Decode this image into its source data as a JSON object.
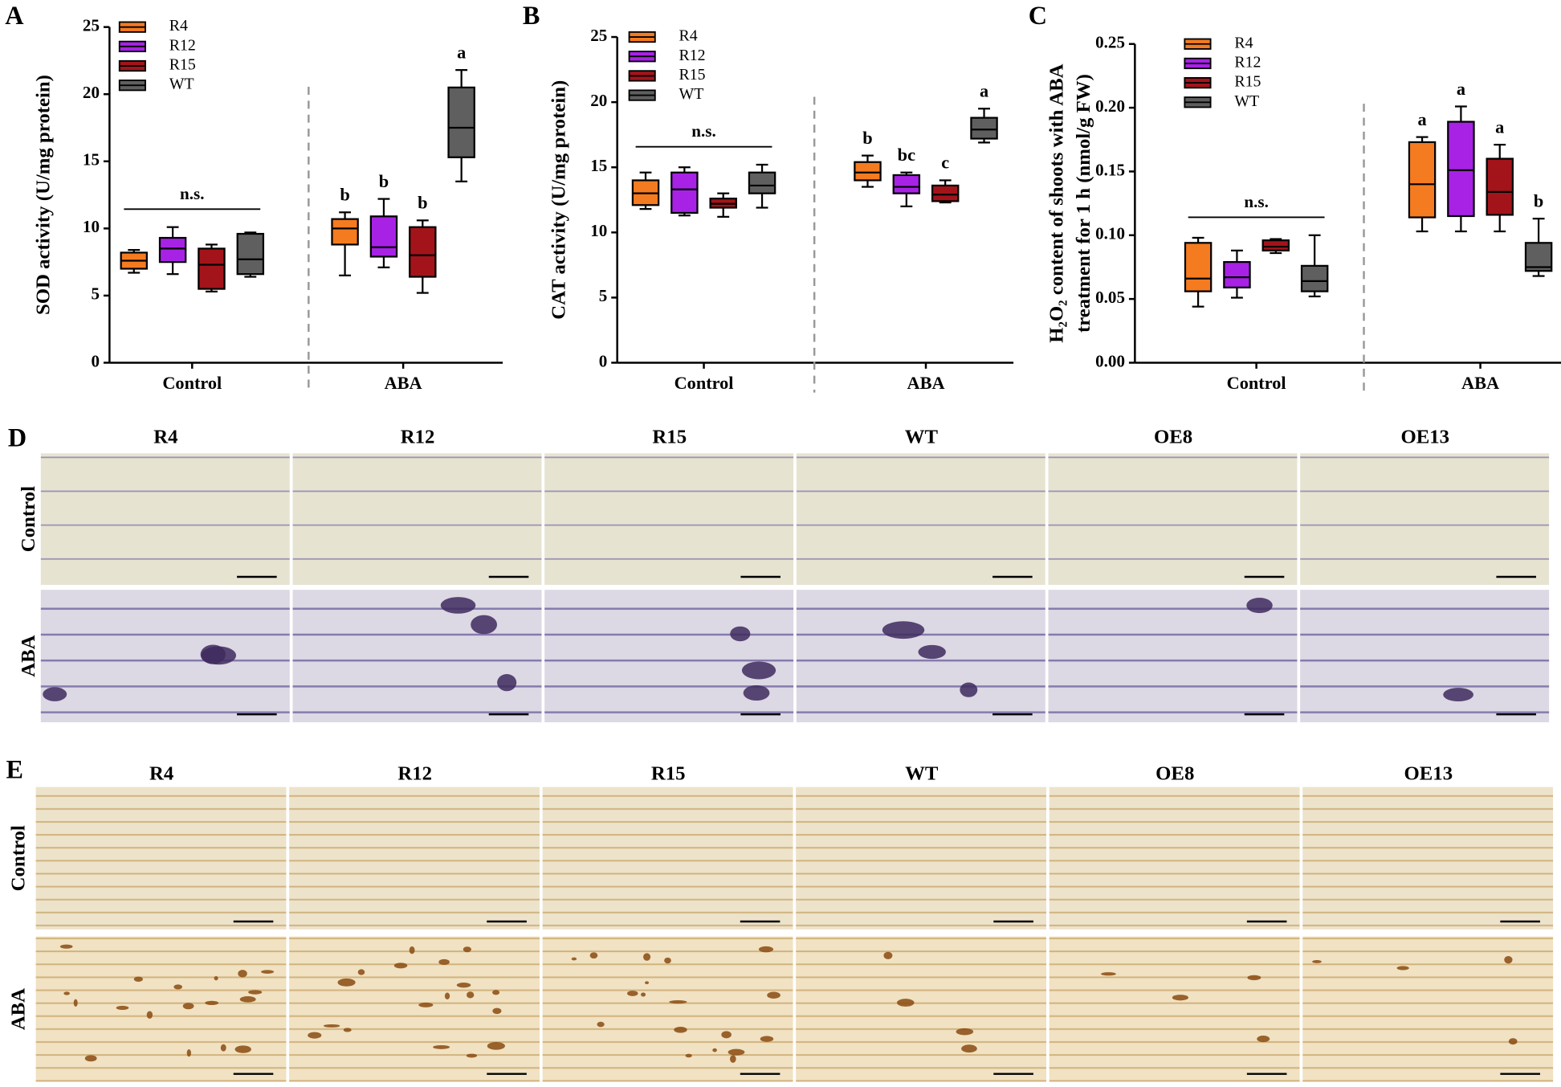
{
  "chart_data": [
    {
      "type": "box",
      "panel": "A",
      "ylabel": [
        "SOD activity (U/mg protein)"
      ],
      "categories": [
        "Control",
        "ABA"
      ],
      "annotation": "n.s.",
      "ylim": [
        0,
        25
      ],
      "yticks": [
        0,
        5,
        10,
        15,
        20,
        25
      ],
      "series": [
        {
          "name": "R4",
          "color": "#f47b20",
          "min": [
            6.7,
            6.5
          ],
          "q1": [
            7.0,
            8.8
          ],
          "median": [
            7.6,
            10.0
          ],
          "q3": [
            8.2,
            10.7
          ],
          "max": [
            8.4,
            11.2
          ],
          "letters": [
            null,
            "b"
          ]
        },
        {
          "name": "R12",
          "color": "#a822e6",
          "min": [
            6.6,
            7.1
          ],
          "q1": [
            7.5,
            7.9
          ],
          "median": [
            8.5,
            8.6
          ],
          "q3": [
            9.3,
            10.9
          ],
          "max": [
            10.1,
            12.2
          ],
          "letters": [
            null,
            "b"
          ]
        },
        {
          "name": "R15",
          "color": "#a3141a",
          "min": [
            5.3,
            5.2
          ],
          "q1": [
            5.5,
            6.4
          ],
          "median": [
            7.3,
            8.0
          ],
          "q3": [
            8.5,
            10.1
          ],
          "max": [
            8.8,
            10.6
          ],
          "letters": [
            null,
            "b"
          ]
        },
        {
          "name": "WT",
          "color": "#5f5f5f",
          "min": [
            6.4,
            13.5
          ],
          "q1": [
            6.6,
            15.3
          ],
          "median": [
            7.7,
            17.5
          ],
          "q3": [
            9.6,
            20.5
          ],
          "max": [
            9.7,
            21.8
          ],
          "letters": [
            null,
            "a"
          ]
        }
      ]
    },
    {
      "type": "box",
      "panel": "B",
      "ylabel": [
        "CAT activity (U/mg protein)"
      ],
      "categories": [
        "Control",
        "ABA"
      ],
      "annotation": "n.s.",
      "ylim": [
        0,
        25
      ],
      "yticks": [
        0,
        5,
        10,
        15,
        20,
        25
      ],
      "series": [
        {
          "name": "R4",
          "color": "#f47b20",
          "min": [
            11.8,
            13.5
          ],
          "q1": [
            12.1,
            14.0
          ],
          "median": [
            13.0,
            14.6
          ],
          "q3": [
            14.0,
            15.4
          ],
          "max": [
            14.6,
            15.9
          ],
          "letters": [
            null,
            "b"
          ]
        },
        {
          "name": "R12",
          "color": "#a822e6",
          "min": [
            11.3,
            12.0
          ],
          "q1": [
            11.5,
            13.0
          ],
          "median": [
            13.3,
            13.5
          ],
          "q3": [
            14.6,
            14.4
          ],
          "max": [
            15.0,
            14.6
          ],
          "letters": [
            null,
            "bc"
          ]
        },
        {
          "name": "R15",
          "color": "#a3141a",
          "min": [
            11.2,
            12.3
          ],
          "q1": [
            11.9,
            12.4
          ],
          "median": [
            12.2,
            12.9
          ],
          "q3": [
            12.6,
            13.6
          ],
          "max": [
            13.0,
            14.0
          ],
          "letters": [
            null,
            "c"
          ]
        },
        {
          "name": "WT",
          "color": "#5f5f5f",
          "min": [
            11.9,
            16.9
          ],
          "q1": [
            13.0,
            17.2
          ],
          "median": [
            13.6,
            17.9
          ],
          "q3": [
            14.6,
            18.8
          ],
          "max": [
            15.2,
            19.5
          ],
          "letters": [
            null,
            "a"
          ]
        }
      ]
    },
    {
      "type": "box",
      "panel": "C",
      "ylabel": [
        "H₂O₂ content of shoots with ABA",
        "treatment for 1 h (nmol/g FW)"
      ],
      "categories": [
        "Control",
        "ABA"
      ],
      "annotation": "n.s.",
      "ylim": [
        0,
        0.25
      ],
      "yticks": [
        {
          "value": 0,
          "label": "0.00"
        },
        {
          "value": 0.05,
          "label": "0.05"
        },
        {
          "value": 0.1,
          "label": "0.10"
        },
        {
          "value": 0.15,
          "label": "0.15"
        },
        {
          "value": 0.2,
          "label": "0.20"
        },
        {
          "value": 0.25,
          "label": "0.25"
        }
      ],
      "series": [
        {
          "name": "R4",
          "color": "#f47b20",
          "min": [
            0.044,
            0.103
          ],
          "q1": [
            0.056,
            0.114
          ],
          "median": [
            0.066,
            0.14
          ],
          "q3": [
            0.094,
            0.173
          ],
          "max": [
            0.098,
            0.177
          ],
          "letters": [
            null,
            "a"
          ]
        },
        {
          "name": "R12",
          "color": "#a822e6",
          "min": [
            0.051,
            0.103
          ],
          "q1": [
            0.059,
            0.115
          ],
          "median": [
            0.067,
            0.151
          ],
          "q3": [
            0.079,
            0.189
          ],
          "max": [
            0.088,
            0.201
          ],
          "letters": [
            null,
            "a"
          ]
        },
        {
          "name": "R15",
          "color": "#a3141a",
          "min": [
            0.086,
            0.103
          ],
          "q1": [
            0.088,
            0.116
          ],
          "median": [
            0.091,
            0.134
          ],
          "q3": [
            0.096,
            0.16
          ],
          "max": [
            0.097,
            0.171
          ],
          "letters": [
            null,
            "a"
          ]
        },
        {
          "name": "WT",
          "color": "#5f5f5f",
          "min": [
            0.052,
            0.068
          ],
          "q1": [
            0.056,
            0.072
          ],
          "median": [
            0.064,
            0.075
          ],
          "q3": [
            0.076,
            0.094
          ],
          "max": [
            0.1,
            0.113
          ],
          "letters": [
            null,
            "b"
          ]
        }
      ]
    }
  ],
  "photo_panels": [
    {
      "label": "D",
      "columns": [
        "R4",
        "R12",
        "R15",
        "WT",
        "OE8",
        "OE13"
      ],
      "rows": [
        "Control",
        "ABA"
      ]
    },
    {
      "label": "E",
      "columns": [
        "R4",
        "R12",
        "R15",
        "WT",
        "OE8",
        "OE13"
      ],
      "rows": [
        "Control",
        "ABA"
      ]
    }
  ]
}
